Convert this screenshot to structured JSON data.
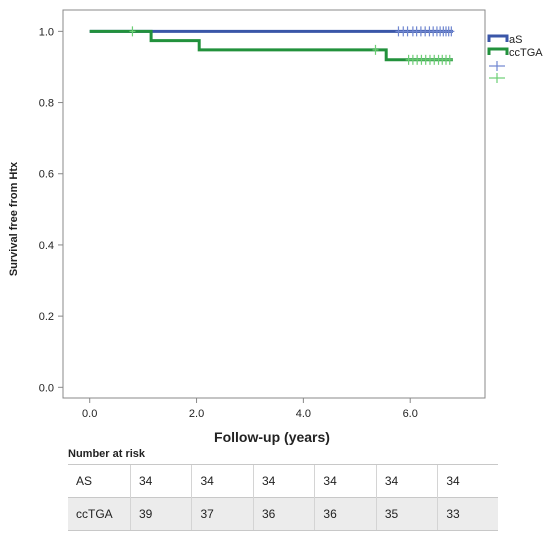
{
  "chart_data": {
    "type": "line",
    "subtype": "kaplan-meier",
    "xlabel": "Follow-up (years)",
    "ylabel": "Survival free from Htx",
    "xlim": [
      -0.5,
      7.4
    ],
    "ylim": [
      -0.03,
      1.06
    ],
    "xticks": [
      0.0,
      2.0,
      4.0,
      6.0
    ],
    "xtick_labels": [
      "0.0",
      "2.0",
      "4.0",
      "6.0"
    ],
    "yticks": [
      0.0,
      0.2,
      0.4,
      0.6,
      0.8,
      1.0
    ],
    "ytick_labels": [
      "0.0",
      "0.2",
      "0.4",
      "0.6",
      "0.8",
      "1.0"
    ],
    "grid": false,
    "legend_position": "right",
    "series": [
      {
        "name": "aS",
        "color": "#3a56a8",
        "censor_color": "#6f86d0",
        "steps": [
          [
            0.0,
            1.0
          ],
          [
            6.8,
            1.0
          ]
        ],
        "censored": [
          [
            5.78,
            1.0
          ],
          [
            5.87,
            1.0
          ],
          [
            5.95,
            1.0
          ],
          [
            6.05,
            1.0
          ],
          [
            6.12,
            1.0
          ],
          [
            6.2,
            1.0
          ],
          [
            6.28,
            1.0
          ],
          [
            6.36,
            1.0
          ],
          [
            6.43,
            1.0
          ],
          [
            6.5,
            1.0
          ],
          [
            6.56,
            1.0
          ],
          [
            6.62,
            1.0
          ],
          [
            6.67,
            1.0
          ],
          [
            6.72,
            1.0
          ],
          [
            6.77,
            1.0
          ]
        ]
      },
      {
        "name": "ccTGA",
        "color": "#22913c",
        "censor_color": "#6cce74",
        "steps": [
          [
            0.0,
            1.0
          ],
          [
            1.15,
            1.0
          ],
          [
            1.15,
            0.974
          ],
          [
            2.05,
            0.974
          ],
          [
            2.05,
            0.948
          ],
          [
            5.55,
            0.948
          ],
          [
            5.55,
            0.92
          ],
          [
            6.8,
            0.92
          ]
        ],
        "censored": [
          [
            0.8,
            1.0
          ],
          [
            5.35,
            0.948
          ],
          [
            5.97,
            0.92
          ],
          [
            6.05,
            0.92
          ],
          [
            6.13,
            0.92
          ],
          [
            6.21,
            0.92
          ],
          [
            6.29,
            0.92
          ],
          [
            6.37,
            0.92
          ],
          [
            6.45,
            0.92
          ],
          [
            6.53,
            0.92
          ],
          [
            6.6,
            0.92
          ],
          [
            6.67,
            0.92
          ],
          [
            6.74,
            0.92
          ]
        ]
      }
    ],
    "legend_extra_marks": [
      "aS-censored",
      "ccTGA-censored"
    ]
  },
  "risk_table": {
    "title": "Number at risk",
    "rows": [
      {
        "label": "AS",
        "values": [
          "34",
          "34",
          "34",
          "34",
          "34",
          "34"
        ]
      },
      {
        "label": "ccTGA",
        "values": [
          "39",
          "37",
          "36",
          "36",
          "35",
          "33"
        ]
      }
    ]
  }
}
